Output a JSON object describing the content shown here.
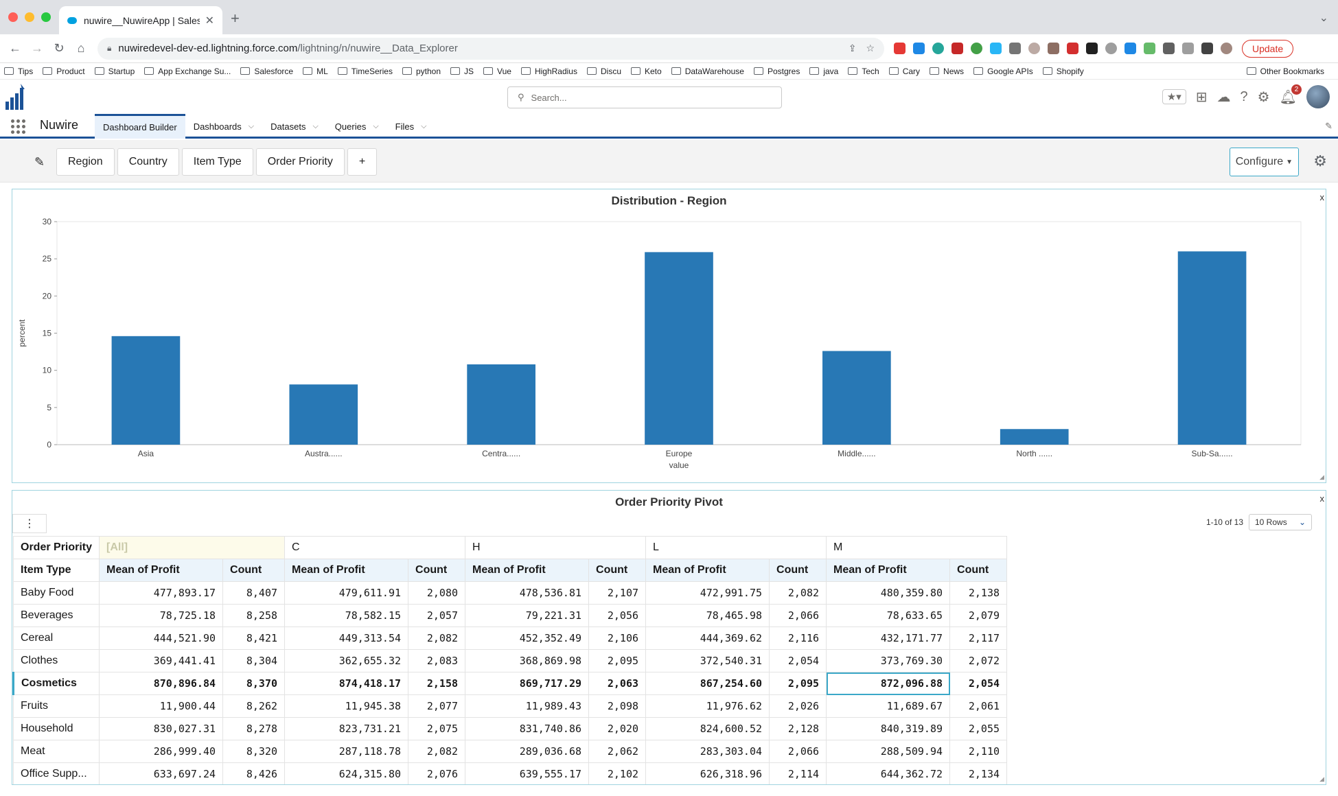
{
  "browser": {
    "tab_title": "nuwire__NuwireApp | Salesforce",
    "url_host": "nuwiredevel-dev-ed.lightning.force.com",
    "url_path": "/lightning/n/nuwire__Data_Explorer",
    "update_label": "Update",
    "bookmarks": [
      "Tips",
      "Product",
      "Startup",
      "App Exchange Su...",
      "Salesforce",
      "ML",
      "TimeSeries",
      "python",
      "JS",
      "Vue",
      "HighRadius",
      "Discu",
      "Keto",
      "DataWarehouse",
      "Postgres",
      "java",
      "Tech",
      "Cary",
      "News",
      "Google APIs",
      "Shopify"
    ],
    "other_bookmarks": "Other Bookmarks"
  },
  "sf": {
    "search_placeholder": "Search...",
    "notification_count": "2",
    "app_name": "Nuwire",
    "nav": [
      {
        "label": "Dashboard Builder",
        "active": true,
        "dropdown": false
      },
      {
        "label": "Dashboards",
        "active": false,
        "dropdown": true
      },
      {
        "label": "Datasets",
        "active": false,
        "dropdown": true
      },
      {
        "label": "Queries",
        "active": false,
        "dropdown": true
      },
      {
        "label": "Files",
        "active": false,
        "dropdown": true
      }
    ]
  },
  "builder": {
    "filters": [
      "Region",
      "Country",
      "Item Type",
      "Order Priority",
      "+"
    ],
    "configure_label": "Configure"
  },
  "chart_panel": {
    "title": "Distribution - Region",
    "close": "x"
  },
  "chart_data": {
    "type": "bar",
    "categories": [
      "Asia",
      "Austra......",
      "Centra......",
      "Europe",
      "Middle......",
      "North ......",
      "Sub-Sa......"
    ],
    "values": [
      14.6,
      8.1,
      10.8,
      25.9,
      12.6,
      2.1,
      26.0
    ],
    "xlabel": "value",
    "ylabel": "percent",
    "ylim": [
      0,
      30
    ],
    "yticks": [
      0,
      5,
      10,
      15,
      20,
      25,
      30
    ],
    "bar_color": "#2878b5",
    "grid": false
  },
  "pivot_panel": {
    "title": "Order Priority Pivot",
    "close": "x",
    "pager_text": "1-10 of 13",
    "rows_label": "10 Rows",
    "col_field": "Order Priority",
    "row_field": "Item Type",
    "col_groups": [
      "[All]",
      "C",
      "H",
      "L",
      "M"
    ],
    "measures": [
      "Mean of Profit",
      "Count"
    ],
    "rows": [
      {
        "label": "Baby Food",
        "values": [
          "477,893.17",
          "8,407",
          "479,611.91",
          "2,080",
          "478,536.81",
          "2,107",
          "472,991.75",
          "2,082",
          "480,359.80",
          "2,138"
        ]
      },
      {
        "label": "Beverages",
        "values": [
          "78,725.18",
          "8,258",
          "78,582.15",
          "2,057",
          "79,221.31",
          "2,056",
          "78,465.98",
          "2,066",
          "78,633.65",
          "2,079"
        ]
      },
      {
        "label": "Cereal",
        "values": [
          "444,521.90",
          "8,421",
          "449,313.54",
          "2,082",
          "452,352.49",
          "2,106",
          "444,369.62",
          "2,116",
          "432,171.77",
          "2,117"
        ]
      },
      {
        "label": "Clothes",
        "values": [
          "369,441.41",
          "8,304",
          "362,655.32",
          "2,083",
          "368,869.98",
          "2,095",
          "372,540.31",
          "2,054",
          "373,769.30",
          "2,072"
        ]
      },
      {
        "label": "Cosmetics",
        "values": [
          "870,896.84",
          "8,370",
          "874,418.17",
          "2,158",
          "869,717.29",
          "2,063",
          "867,254.60",
          "2,095",
          "872,096.88",
          "2,054"
        ]
      },
      {
        "label": "Fruits",
        "values": [
          "11,900.44",
          "8,262",
          "11,945.38",
          "2,077",
          "11,989.43",
          "2,098",
          "11,976.62",
          "2,026",
          "11,689.67",
          "2,061"
        ]
      },
      {
        "label": "Household",
        "values": [
          "830,027.31",
          "8,278",
          "823,731.21",
          "2,075",
          "831,740.86",
          "2,020",
          "824,600.52",
          "2,128",
          "840,319.89",
          "2,055"
        ]
      },
      {
        "label": "Meat",
        "values": [
          "286,999.40",
          "8,320",
          "287,118.78",
          "2,082",
          "289,036.68",
          "2,062",
          "283,303.04",
          "2,066",
          "288,509.94",
          "2,110"
        ]
      },
      {
        "label": "Office Supp...",
        "values": [
          "633,697.24",
          "8,426",
          "624,315.80",
          "2,076",
          "639,555.17",
          "2,102",
          "626,318.96",
          "2,114",
          "644,362.72",
          "2,134"
        ]
      }
    ],
    "selected_row": 4
  }
}
